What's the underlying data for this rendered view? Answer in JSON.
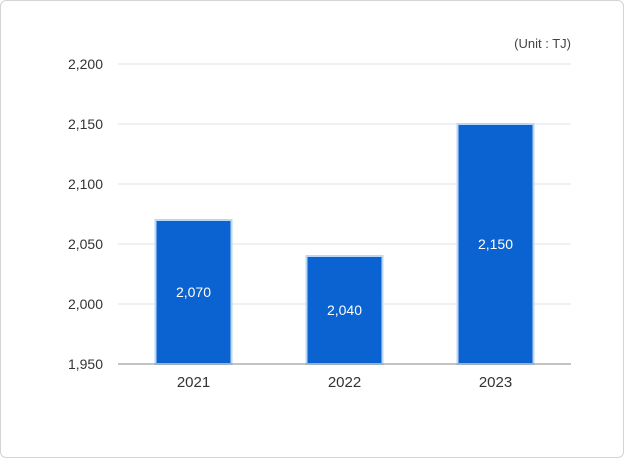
{
  "chart_data": {
    "type": "bar",
    "title": "",
    "unit_label": "(Unit : TJ)",
    "categories": [
      "2021",
      "2022",
      "2023"
    ],
    "values": [
      2070,
      2040,
      2150
    ],
    "data_labels": [
      "2,070",
      "2,040",
      "2,150"
    ],
    "ylim": [
      1950,
      2200
    ],
    "yticks": [
      1950,
      2000,
      2050,
      2100,
      2150,
      2200
    ],
    "ytick_labels": [
      "1,950",
      "2,000",
      "2,050",
      "2,100",
      "2,150",
      "2,200"
    ],
    "grid": true,
    "legend": "none",
    "bar_color": "#0a63d1",
    "bar_edge_color": "#bcd7f5"
  }
}
